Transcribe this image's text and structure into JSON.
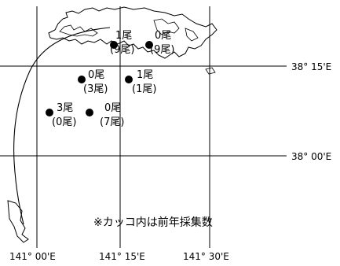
{
  "map": {
    "note": "※カッコ内は前年採集数",
    "latitude_labels": [
      {
        "id": "lat-38-15",
        "text": "38° 15'E"
      },
      {
        "id": "lat-38-00",
        "text": "38° 00'E"
      }
    ],
    "longitude_labels": [
      {
        "id": "lon-141-00",
        "text": "141° 00'E"
      },
      {
        "id": "lon-141-15",
        "text": "141° 15'E"
      },
      {
        "id": "lon-141-30",
        "text": "141° 30'E"
      }
    ],
    "stations": [
      {
        "id": "s1",
        "count": "1尾",
        "previous": "(9尾)"
      },
      {
        "id": "s2",
        "count": "0尾",
        "previous": "(9尾)"
      },
      {
        "id": "s3",
        "count": "0尾",
        "previous": "(3尾)"
      },
      {
        "id": "s4",
        "count": "1尾",
        "previous": "(1尾)"
      },
      {
        "id": "s5",
        "count": "3尾",
        "previous": "(0尾)"
      },
      {
        "id": "s6",
        "count": "0尾",
        "previous": "(7尾)"
      }
    ],
    "colors": {
      "line": "#000000",
      "marker": "#000000",
      "background": "#ffffff"
    }
  }
}
